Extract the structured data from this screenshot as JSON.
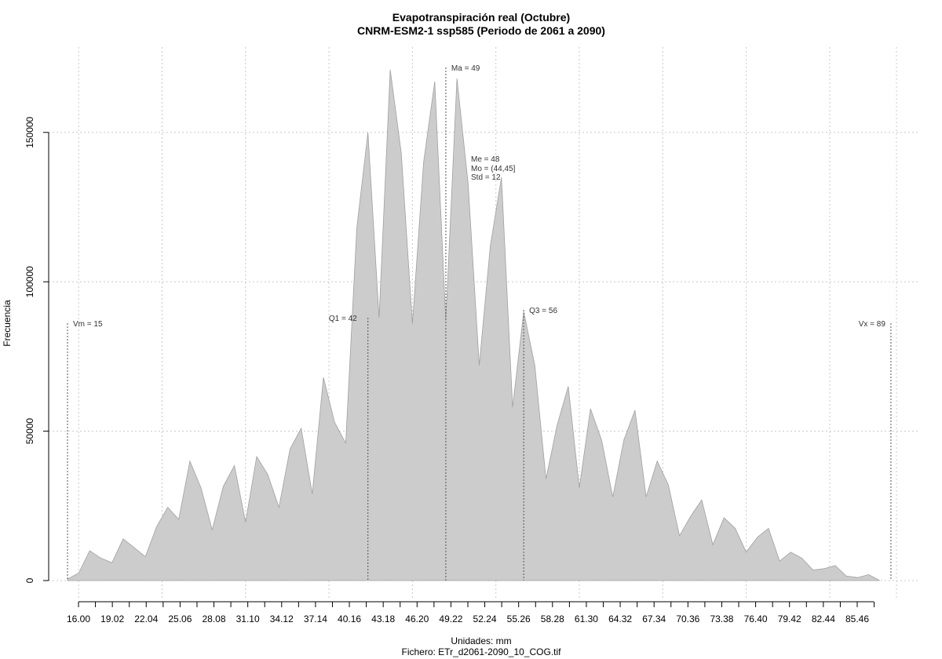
{
  "chart_data": {
    "type": "area",
    "title": "Evapotranspiración real (Octubre)",
    "subtitle": "CNRM-ESM2-1 ssp585 (Periodo de 2061 a 2090)",
    "xlabel": "Unidades: mm",
    "file_note": "Fichero: ETr_d2061-2090_10_COG.tif",
    "ylabel": "Frecuencia",
    "xlim": [
      15.0,
      89.5
    ],
    "ylim": [
      0,
      172000
    ],
    "x_ticks": [
      "16.00",
      "19.02",
      "22.04",
      "25.06",
      "28.08",
      "31.10",
      "34.12",
      "37.14",
      "40.16",
      "43.18",
      "46.20",
      "49.22",
      "52.24",
      "55.26",
      "58.28",
      "61.30",
      "64.32",
      "67.34",
      "70.36",
      "73.38",
      "76.40",
      "79.42",
      "82.44",
      "85.46"
    ],
    "y_ticks": [
      0,
      50000,
      100000,
      150000
    ],
    "y_tick_labels": [
      "0",
      "50000",
      "100000",
      "150000"
    ],
    "grid": true,
    "fill_color": "#cccccc",
    "line_color": "#a0a0a0",
    "x": [
      15.0,
      16.0,
      17.0,
      18.0,
      19.0,
      20.0,
      21.0,
      22.0,
      23.0,
      24.0,
      25.0,
      26.0,
      27.0,
      28.0,
      29.0,
      30.0,
      31.0,
      32.0,
      33.0,
      34.0,
      35.0,
      36.0,
      37.0,
      38.0,
      39.0,
      40.0,
      41.0,
      42.0,
      43.0,
      44.0,
      45.0,
      46.0,
      47.0,
      48.0,
      49.0,
      50.0,
      51.0,
      52.0,
      53.0,
      54.0,
      55.0,
      56.0,
      57.0,
      58.0,
      59.0,
      60.0,
      61.0,
      62.0,
      63.0,
      64.0,
      65.0,
      66.0,
      67.0,
      68.0,
      69.0,
      70.0,
      71.0,
      72.0,
      73.0,
      74.0,
      75.0,
      76.0,
      77.0,
      78.0,
      79.0,
      80.0,
      81.0,
      82.0,
      83.0,
      84.0,
      85.0,
      86.0,
      87.0,
      88.0
    ],
    "values": [
      500,
      2500,
      10000,
      7500,
      6000,
      14000,
      11000,
      8000,
      18000,
      24500,
      20500,
      40000,
      31000,
      17000,
      31500,
      38500,
      19500,
      41500,
      35500,
      24500,
      44000,
      51000,
      29000,
      68000,
      53000,
      46000,
      118000,
      150000,
      88000,
      171000,
      143000,
      86000,
      140000,
      167000,
      87000,
      168000,
      133000,
      72000,
      112000,
      135000,
      58000,
      90000,
      72000,
      34000,
      52000,
      65000,
      31000,
      57500,
      47000,
      28000,
      47000,
      57000,
      28000,
      40000,
      32000,
      15000,
      21500,
      27000,
      12000,
      21000,
      17500,
      9500,
      14500,
      17500,
      6500,
      9500,
      7500,
      3500,
      4000,
      5000,
      1500,
      1000,
      2000,
      0
    ],
    "markers": [
      {
        "id": "vm",
        "x": 15,
        "label": "Vm = 15"
      },
      {
        "id": "q1",
        "x": 42,
        "label": "Q1 = 42"
      },
      {
        "id": "ma",
        "x": 49,
        "label": "Ma = 49"
      },
      {
        "id": "q3",
        "x": 56,
        "label": "Q3 = 56"
      },
      {
        "id": "vx",
        "x": 89,
        "label": "Vx = 89"
      }
    ],
    "stats": {
      "me": "Me = 48",
      "mo": "Mo = (44,45]",
      "std": "Std = 12"
    }
  }
}
